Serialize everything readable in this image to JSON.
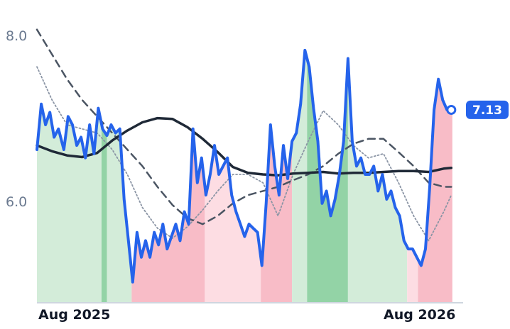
{
  "chart_data": {
    "type": "line",
    "title": "",
    "xlabel": "",
    "ylabel": "",
    "x_ticks": [
      "Aug 2025",
      "Aug 2026"
    ],
    "y_ticks": [
      "8.0",
      "6.0"
    ],
    "xlim": [
      "2025-07-31",
      "2026-08-31"
    ],
    "ylim": [
      4.8,
      8.2
    ],
    "grid": false,
    "last_value_label": "7.13",
    "colors": {
      "price": "#2563eb",
      "long_ma": "#1f2937",
      "dashed_ma": "#4b5563",
      "dotted_ma": "#8b95a5",
      "green_light": "#d3ecd9",
      "green_dark": "#93d3a6",
      "red_light": "#fddde3",
      "red_dark": "#f8bcc7",
      "badge": "#2563eb"
    },
    "regions": [
      {
        "from": "2025-07-31",
        "to": "2025-09-29",
        "signal": "bull",
        "strength": "weak"
      },
      {
        "from": "2025-09-29",
        "to": "2025-10-04",
        "signal": "bull",
        "strength": "strong"
      },
      {
        "from": "2025-10-04",
        "to": "2025-10-27",
        "signal": "bull",
        "strength": "weak"
      },
      {
        "from": "2025-10-27",
        "to": "2026-01-03",
        "signal": "bear",
        "strength": "strong"
      },
      {
        "from": "2026-01-03",
        "to": "2026-02-24",
        "signal": "bear",
        "strength": "weak"
      },
      {
        "from": "2026-02-24",
        "to": "2026-03-25",
        "signal": "bear",
        "strength": "strong"
      },
      {
        "from": "2026-03-25",
        "to": "2026-04-08",
        "signal": "bull",
        "strength": "weak"
      },
      {
        "from": "2026-04-08",
        "to": "2026-05-16",
        "signal": "bull",
        "strength": "strong"
      },
      {
        "from": "2026-05-16",
        "to": "2026-07-10",
        "signal": "bull",
        "strength": "weak"
      },
      {
        "from": "2026-07-10",
        "to": "2026-07-20",
        "signal": "bear",
        "strength": "weak"
      },
      {
        "from": "2026-07-20",
        "to": "2026-08-21",
        "signal": "bear",
        "strength": "strong"
      }
    ],
    "series": [
      {
        "style": "price",
        "x": [
          "2025-07-31",
          "2025-08-04",
          "2025-08-08",
          "2025-08-12",
          "2025-08-16",
          "2025-08-20",
          "2025-08-25",
          "2025-08-29",
          "2025-09-02",
          "2025-09-06",
          "2025-09-10",
          "2025-09-14",
          "2025-09-18",
          "2025-09-22",
          "2025-09-26",
          "2025-09-30",
          "2025-10-04",
          "2025-10-08",
          "2025-10-12",
          "2025-10-16",
          "2025-10-20",
          "2025-10-24",
          "2025-10-28",
          "2025-11-01",
          "2025-11-05",
          "2025-11-09",
          "2025-11-13",
          "2025-11-17",
          "2025-11-21",
          "2025-11-25",
          "2025-11-29",
          "2025-12-03",
          "2025-12-07",
          "2025-12-11",
          "2025-12-15",
          "2025-12-19",
          "2025-12-23",
          "2025-12-27",
          "2025-12-31",
          "2026-01-04",
          "2026-01-08",
          "2026-01-12",
          "2026-01-16",
          "2026-01-20",
          "2026-01-24",
          "2026-01-28",
          "2026-02-01",
          "2026-02-05",
          "2026-02-09",
          "2026-02-13",
          "2026-02-17",
          "2026-02-21",
          "2026-02-25",
          "2026-03-01",
          "2026-03-05",
          "2026-03-09",
          "2026-03-13",
          "2026-03-17",
          "2026-03-21",
          "2026-03-25",
          "2026-03-29",
          "2026-04-02",
          "2026-04-06",
          "2026-04-10",
          "2026-04-14",
          "2026-04-18",
          "2026-04-22",
          "2026-04-26",
          "2026-04-30",
          "2026-05-04",
          "2026-05-08",
          "2026-05-12",
          "2026-05-16",
          "2026-05-20",
          "2026-05-24",
          "2026-05-28",
          "2026-06-01",
          "2026-06-05",
          "2026-06-09",
          "2026-06-13",
          "2026-06-17",
          "2026-06-21",
          "2026-06-25",
          "2026-06-29",
          "2026-07-03",
          "2026-07-07",
          "2026-07-11",
          "2026-07-15",
          "2026-07-19",
          "2026-07-23",
          "2026-07-27",
          "2026-07-31",
          "2026-08-04",
          "2026-08-08",
          "2026-08-12",
          "2026-08-16",
          "2026-08-20"
        ],
        "values": [
          6.65,
          7.2,
          6.95,
          7.1,
          6.8,
          6.9,
          6.65,
          7.05,
          6.95,
          6.7,
          6.8,
          6.55,
          6.95,
          6.6,
          7.15,
          6.9,
          6.82,
          6.95,
          6.85,
          6.9,
          6.05,
          5.55,
          5.05,
          5.65,
          5.35,
          5.55,
          5.35,
          5.65,
          5.5,
          5.75,
          5.45,
          5.6,
          5.75,
          5.55,
          5.9,
          5.75,
          6.9,
          6.25,
          6.55,
          6.1,
          6.35,
          6.7,
          6.35,
          6.45,
          6.55,
          6.1,
          5.9,
          5.75,
          5.6,
          5.75,
          5.7,
          5.65,
          5.25,
          6.0,
          6.95,
          6.45,
          6.1,
          6.7,
          6.3,
          6.75,
          6.85,
          7.2,
          7.85,
          7.65,
          7.15,
          6.75,
          6.0,
          6.15,
          5.85,
          6.05,
          6.35,
          6.75,
          7.75,
          6.75,
          6.45,
          6.55,
          6.35,
          6.35,
          6.45,
          6.15,
          6.35,
          6.05,
          6.15,
          5.95,
          5.85,
          5.55,
          5.45,
          5.45,
          5.35,
          5.25,
          5.45,
          6.2,
          7.13,
          7.5,
          7.25,
          7.13,
          7.13
        ]
      },
      {
        "style": "long_ma",
        "x": [
          "2025-07-31",
          "2025-08-14",
          "2025-08-28",
          "2025-09-11",
          "2025-09-25",
          "2025-10-09",
          "2025-10-23",
          "2025-11-06",
          "2025-11-20",
          "2025-12-04",
          "2025-12-18",
          "2026-01-01",
          "2026-01-15",
          "2026-01-29",
          "2026-02-12",
          "2026-02-26",
          "2026-03-12",
          "2026-03-26",
          "2026-04-09",
          "2026-04-23",
          "2026-05-07",
          "2026-05-21",
          "2026-06-04",
          "2026-06-18",
          "2026-07-02",
          "2026-07-16",
          "2026-07-30",
          "2026-08-13",
          "2026-08-20"
        ],
        "values": [
          6.7,
          6.63,
          6.58,
          6.56,
          6.61,
          6.76,
          6.88,
          6.98,
          7.03,
          7.02,
          6.92,
          6.78,
          6.62,
          6.44,
          6.37,
          6.35,
          6.34,
          6.36,
          6.37,
          6.38,
          6.36,
          6.37,
          6.37,
          6.38,
          6.39,
          6.39,
          6.38,
          6.42,
          6.43
        ]
      },
      {
        "style": "dashed_ma",
        "x": [
          "2025-07-31",
          "2025-08-14",
          "2025-08-28",
          "2025-09-11",
          "2025-09-25",
          "2025-10-09",
          "2025-10-23",
          "2025-11-06",
          "2025-11-20",
          "2025-12-04",
          "2025-12-18",
          "2026-01-01",
          "2026-01-15",
          "2026-01-29",
          "2026-02-12",
          "2026-02-26",
          "2026-03-12",
          "2026-03-26",
          "2026-04-09",
          "2026-04-23",
          "2026-05-07",
          "2026-05-21",
          "2026-06-04",
          "2026-06-18",
          "2026-07-02",
          "2026-07-16",
          "2026-07-30",
          "2026-08-13",
          "2026-08-20"
        ],
        "values": [
          8.1,
          7.8,
          7.5,
          7.25,
          7.05,
          6.85,
          6.65,
          6.45,
          6.2,
          5.98,
          5.82,
          5.75,
          5.85,
          6.0,
          6.1,
          6.15,
          6.2,
          6.28,
          6.35,
          6.45,
          6.6,
          6.72,
          6.78,
          6.78,
          6.62,
          6.45,
          6.25,
          6.2,
          6.2
        ]
      },
      {
        "style": "dotted_ma",
        "x": [
          "2025-07-31",
          "2025-08-14",
          "2025-08-28",
          "2025-09-11",
          "2025-09-25",
          "2025-10-09",
          "2025-10-23",
          "2025-11-06",
          "2025-11-20",
          "2025-12-04",
          "2025-12-18",
          "2026-01-01",
          "2026-01-15",
          "2026-01-29",
          "2026-02-12",
          "2026-02-26",
          "2026-03-12",
          "2026-03-26",
          "2026-04-09",
          "2026-04-23",
          "2026-05-07",
          "2026-05-21",
          "2026-06-04",
          "2026-06-18",
          "2026-07-02",
          "2026-07-16",
          "2026-07-30",
          "2026-08-13",
          "2026-08-20"
        ],
        "values": [
          7.65,
          7.25,
          6.95,
          6.9,
          6.85,
          6.65,
          6.35,
          5.95,
          5.7,
          5.58,
          5.72,
          5.92,
          6.15,
          6.35,
          6.35,
          6.25,
          5.85,
          6.35,
          6.75,
          7.12,
          6.95,
          6.7,
          6.55,
          6.6,
          6.25,
          5.85,
          5.55,
          5.9,
          6.1
        ]
      }
    ]
  }
}
